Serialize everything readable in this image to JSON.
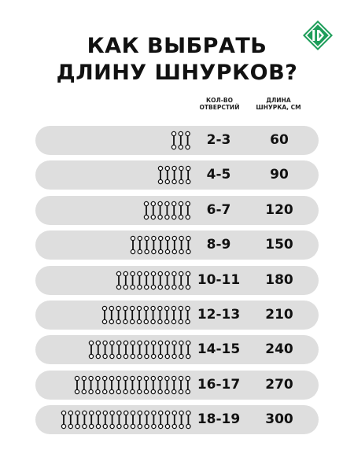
{
  "title": {
    "line1": "КАК ВЫБРАТЬ",
    "line2": "ДЛИНУ ШНУРКОВ?"
  },
  "logo": {
    "icon": "brand-logo-icon",
    "color": "#1e9e5a"
  },
  "columns": {
    "holes": {
      "line1": "КОЛ-ВО",
      "line2": "ОТВЕРСТИЙ"
    },
    "length": {
      "line1": "ДЛИНА",
      "line2": "ШНУРКА, СМ"
    }
  },
  "rows": [
    {
      "holes": "2-3",
      "length": "60",
      "eyelet_pairs": 3
    },
    {
      "holes": "4-5",
      "length": "90",
      "eyelet_pairs": 5
    },
    {
      "holes": "6-7",
      "length": "120",
      "eyelet_pairs": 7
    },
    {
      "holes": "8-9",
      "length": "150",
      "eyelet_pairs": 9
    },
    {
      "holes": "10-11",
      "length": "180",
      "eyelet_pairs": 11
    },
    {
      "holes": "12-13",
      "length": "210",
      "eyelet_pairs": 13
    },
    {
      "holes": "14-15",
      "length": "240",
      "eyelet_pairs": 15
    },
    {
      "holes": "16-17",
      "length": "270",
      "eyelet_pairs": 17
    },
    {
      "holes": "18-19",
      "length": "300",
      "eyelet_pairs": 19
    }
  ],
  "colors": {
    "row_background": "#dedede",
    "text": "#111111"
  }
}
